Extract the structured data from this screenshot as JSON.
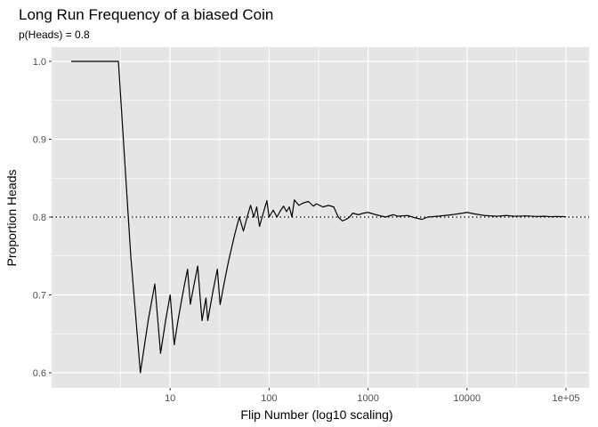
{
  "chart_data": {
    "type": "line",
    "title": "Long Run Frequency of a biased Coin",
    "subtitle": "p(Heads) = 0.8",
    "xlabel": "Flip Number (log10 scaling)",
    "ylabel": "Proportion Heads",
    "x_scale": "log10",
    "xlim": [
      1,
      100000
    ],
    "ylim": [
      0.6,
      1.0
    ],
    "x_ticks": [
      {
        "value": 10,
        "label": "10"
      },
      {
        "value": 100,
        "label": "100"
      },
      {
        "value": 1000,
        "label": "1000"
      },
      {
        "value": 10000,
        "label": "10000"
      },
      {
        "value": 100000,
        "label": "1e+05"
      }
    ],
    "y_ticks": [
      {
        "value": 0.6,
        "label": "0.6"
      },
      {
        "value": 0.7,
        "label": "0.7"
      },
      {
        "value": 0.8,
        "label": "0.8"
      },
      {
        "value": 0.9,
        "label": "0.9"
      },
      {
        "value": 1.0,
        "label": "1.0"
      }
    ],
    "reference_line": {
      "y": 0.8,
      "style": "dotted"
    },
    "grid": true,
    "colors": {
      "panel": "#e5e5e5",
      "grid": "#ffffff",
      "line": "#000000"
    },
    "series": [
      {
        "x": [
          1,
          2,
          3,
          4,
          5,
          6,
          7,
          8,
          9,
          10,
          11,
          12,
          13,
          14,
          15,
          16,
          17,
          18,
          19,
          20,
          21,
          22,
          23,
          24,
          25,
          26,
          27,
          28,
          30,
          32,
          35,
          38,
          40,
          45,
          50,
          55,
          60,
          65,
          70,
          75,
          80,
          85,
          90,
          95,
          100,
          110,
          120,
          130,
          140,
          150,
          160,
          170,
          180,
          200,
          220,
          250,
          280,
          300,
          350,
          400,
          450,
          500,
          550,
          600,
          650,
          700,
          800,
          900,
          1000,
          1200,
          1500,
          1800,
          2000,
          2500,
          3000,
          3500,
          4000,
          5000,
          6000,
          7000,
          8000,
          9000,
          10000,
          12000,
          15000,
          20000,
          25000,
          30000,
          40000,
          50000,
          60000,
          70000,
          80000,
          100000
        ],
        "values": [
          1.0,
          1.0,
          1.0,
          0.75,
          0.6,
          0.667,
          0.714,
          0.625,
          0.667,
          0.7,
          0.636,
          0.667,
          0.692,
          0.714,
          0.733,
          0.688,
          0.706,
          0.722,
          0.737,
          0.7,
          0.667,
          0.682,
          0.696,
          0.667,
          0.68,
          0.692,
          0.704,
          0.714,
          0.733,
          0.6875,
          0.714,
          0.737,
          0.75,
          0.778,
          0.8,
          0.782,
          0.8,
          0.815,
          0.8,
          0.813,
          0.788,
          0.8,
          0.811,
          0.821,
          0.8,
          0.809,
          0.8,
          0.808,
          0.814,
          0.807,
          0.813,
          0.8,
          0.822,
          0.815,
          0.818,
          0.82,
          0.814,
          0.817,
          0.813,
          0.815,
          0.813,
          0.8,
          0.795,
          0.797,
          0.8,
          0.805,
          0.803,
          0.805,
          0.806,
          0.803,
          0.8,
          0.803,
          0.801,
          0.802,
          0.799,
          0.797,
          0.8,
          0.801,
          0.802,
          0.803,
          0.804,
          0.805,
          0.806,
          0.804,
          0.802,
          0.801,
          0.802,
          0.801,
          0.8015,
          0.8008,
          0.801,
          0.8005,
          0.8007,
          0.8005
        ]
      }
    ]
  }
}
